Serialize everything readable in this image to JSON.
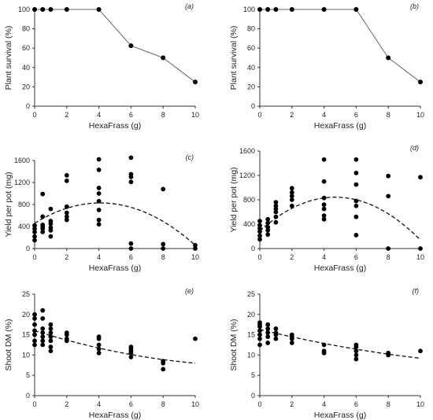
{
  "chart_data": [
    {
      "id": "a",
      "type": "line",
      "panel_label": "(a)",
      "xlabel": "HexaFrass (g)",
      "ylabel": "Plant survival (%)",
      "xlim": [
        0,
        10
      ],
      "ylim": [
        0,
        100
      ],
      "xticks": [
        0,
        2,
        4,
        6,
        8,
        10
      ],
      "yticks": [
        0,
        20,
        40,
        60,
        80,
        100
      ],
      "line_points": [
        [
          0,
          100
        ],
        [
          0.5,
          100
        ],
        [
          1,
          100
        ],
        [
          2,
          100
        ],
        [
          4,
          100
        ],
        [
          6,
          62.5
        ],
        [
          8,
          50
        ],
        [
          10,
          25
        ]
      ],
      "scatter_points": []
    },
    {
      "id": "b",
      "type": "line",
      "panel_label": "(b)",
      "xlabel": "HexaFrass (g)",
      "ylabel": "Plant survival (%)",
      "xlim": [
        0,
        10
      ],
      "ylim": [
        0,
        100
      ],
      "xticks": [
        0,
        2,
        4,
        6,
        8,
        10
      ],
      "yticks": [
        0,
        20,
        40,
        60,
        80,
        100
      ],
      "line_points": [
        [
          0,
          100
        ],
        [
          0.5,
          100
        ],
        [
          1,
          100
        ],
        [
          2,
          100
        ],
        [
          4,
          100
        ],
        [
          6,
          100
        ],
        [
          8,
          50
        ],
        [
          10,
          25
        ]
      ],
      "scatter_points": []
    },
    {
      "id": "c",
      "type": "scatter",
      "panel_label": "(c)",
      "xlabel": "HexaFrass (g)",
      "ylabel": "Yield per pot (mg)",
      "xlim": [
        0,
        10
      ],
      "ylim": [
        0,
        1600
      ],
      "xticks": [
        0,
        2,
        4,
        6,
        8,
        10
      ],
      "yticks": [
        0,
        400,
        800,
        1200,
        1600
      ],
      "scatter_points": [
        [
          0,
          150
        ],
        [
          0,
          220
        ],
        [
          0,
          300
        ],
        [
          0,
          360
        ],
        [
          0,
          420
        ],
        [
          0.5,
          300
        ],
        [
          0.5,
          360
        ],
        [
          0.5,
          400
        ],
        [
          0.5,
          430
        ],
        [
          0.5,
          580
        ],
        [
          0.5,
          990
        ],
        [
          1,
          220
        ],
        [
          1,
          330
        ],
        [
          1,
          380
        ],
        [
          1,
          450
        ],
        [
          1,
          500
        ],
        [
          1,
          720
        ],
        [
          2,
          520
        ],
        [
          2,
          580
        ],
        [
          2,
          650
        ],
        [
          2,
          760
        ],
        [
          2,
          1230
        ],
        [
          2,
          1330
        ],
        [
          4,
          440
        ],
        [
          4,
          520
        ],
        [
          4,
          700
        ],
        [
          4,
          860
        ],
        [
          4,
          1000
        ],
        [
          4,
          1100
        ],
        [
          4,
          1430
        ],
        [
          4,
          1620
        ],
        [
          6,
          0
        ],
        [
          6,
          90
        ],
        [
          6,
          1210
        ],
        [
          6,
          1300
        ],
        [
          6,
          1350
        ],
        [
          6,
          1650
        ],
        [
          8,
          0
        ],
        [
          8,
          80
        ],
        [
          8,
          1080
        ],
        [
          10,
          0
        ],
        [
          10,
          60
        ]
      ],
      "trend": {
        "style": "dashed",
        "quadratic": [
          460,
          180,
          -22
        ],
        "x_range": [
          0,
          9.9
        ]
      }
    },
    {
      "id": "d",
      "type": "scatter",
      "panel_label": "(d)",
      "xlabel": "HexaFrass (g)",
      "ylabel": "Yield per pot (mg)",
      "xlim": [
        0,
        10
      ],
      "ylim": [
        0,
        1600
      ],
      "xticks": [
        0,
        2,
        4,
        6,
        8,
        10
      ],
      "yticks": [
        0,
        400,
        800,
        1200,
        1600
      ],
      "scatter_points": [
        [
          0,
          150
        ],
        [
          0,
          210
        ],
        [
          0,
          280
        ],
        [
          0,
          330
        ],
        [
          0,
          380
        ],
        [
          0,
          450
        ],
        [
          0.5,
          230
        ],
        [
          0.5,
          300
        ],
        [
          0.5,
          350
        ],
        [
          0.5,
          420
        ],
        [
          0.5,
          480
        ],
        [
          1,
          430
        ],
        [
          1,
          520
        ],
        [
          1,
          600
        ],
        [
          1,
          650
        ],
        [
          1,
          700
        ],
        [
          1,
          760
        ],
        [
          2,
          700
        ],
        [
          2,
          800
        ],
        [
          2,
          860
        ],
        [
          2,
          920
        ],
        [
          2,
          990
        ],
        [
          4,
          480
        ],
        [
          4,
          540
        ],
        [
          4,
          650
        ],
        [
          4,
          720
        ],
        [
          4,
          830
        ],
        [
          4,
          1100
        ],
        [
          4,
          1460
        ],
        [
          6,
          220
        ],
        [
          6,
          520
        ],
        [
          6,
          700
        ],
        [
          6,
          780
        ],
        [
          6,
          1050
        ],
        [
          6,
          1240
        ],
        [
          6,
          1460
        ],
        [
          8,
          0
        ],
        [
          8,
          860
        ],
        [
          8,
          1190
        ],
        [
          10,
          0
        ],
        [
          10,
          1170
        ]
      ],
      "trend": {
        "style": "dashed",
        "quadratic": [
          290,
          235,
          -25
        ],
        "x_range": [
          0,
          10
        ]
      }
    },
    {
      "id": "e",
      "type": "scatter",
      "panel_label": "(e)",
      "xlabel": "HexaFrass (g)",
      "ylabel": "Shoot DM (%)",
      "xlim": [
        0,
        10
      ],
      "ylim": [
        0,
        25
      ],
      "xticks": [
        0,
        2,
        4,
        6,
        8,
        10
      ],
      "yticks": [
        0,
        5,
        10,
        15,
        20,
        25
      ],
      "scatter_points": [
        [
          0,
          12.5
        ],
        [
          0,
          13.5
        ],
        [
          0,
          15
        ],
        [
          0,
          16
        ],
        [
          0,
          17.5
        ],
        [
          0,
          19
        ],
        [
          0,
          20
        ],
        [
          0.5,
          12.5
        ],
        [
          0.5,
          13.5
        ],
        [
          0.5,
          14.5
        ],
        [
          0.5,
          15.5
        ],
        [
          0.5,
          16.5
        ],
        [
          0.5,
          19
        ],
        [
          0.5,
          21
        ],
        [
          1,
          11
        ],
        [
          1,
          12
        ],
        [
          1,
          13.5
        ],
        [
          1,
          14.5
        ],
        [
          1,
          15.5
        ],
        [
          1,
          16.5
        ],
        [
          1,
          17.5
        ],
        [
          2,
          13.5
        ],
        [
          2,
          14
        ],
        [
          2,
          15
        ],
        [
          2,
          15.5
        ],
        [
          4,
          10.5
        ],
        [
          4,
          11.5
        ],
        [
          4,
          12.5
        ],
        [
          4,
          14
        ],
        [
          4,
          14.5
        ],
        [
          6,
          9.5
        ],
        [
          6,
          10.5
        ],
        [
          6,
          11
        ],
        [
          6,
          11.5
        ],
        [
          6,
          12
        ],
        [
          8,
          6.5
        ],
        [
          8,
          8
        ],
        [
          8,
          8.5
        ],
        [
          10,
          14
        ]
      ],
      "trend": {
        "style": "dashed",
        "quadratic": [
          16,
          -1.25,
          0.045
        ],
        "x_range": [
          0,
          10
        ]
      }
    },
    {
      "id": "f",
      "type": "scatter",
      "panel_label": "(f)",
      "xlabel": "HexaFrass (g)",
      "ylabel": "Shoot DM (%)",
      "xlim": [
        0,
        10
      ],
      "ylim": [
        0,
        25
      ],
      "xticks": [
        0,
        2,
        4,
        6,
        8,
        10
      ],
      "yticks": [
        0,
        5,
        10,
        15,
        20,
        25
      ],
      "scatter_points": [
        [
          0,
          12.5
        ],
        [
          0,
          14
        ],
        [
          0,
          15
        ],
        [
          0,
          16
        ],
        [
          0,
          17
        ],
        [
          0,
          17.5
        ],
        [
          0,
          18
        ],
        [
          0.5,
          13
        ],
        [
          0.5,
          14.5
        ],
        [
          0.5,
          15.5
        ],
        [
          0.5,
          16.5
        ],
        [
          0.5,
          17.5
        ],
        [
          1,
          14
        ],
        [
          1,
          15
        ],
        [
          1,
          15.5
        ],
        [
          1,
          16.5
        ],
        [
          2,
          13
        ],
        [
          2,
          14
        ],
        [
          2,
          14.5
        ],
        [
          2,
          15
        ],
        [
          4,
          10.5
        ],
        [
          4,
          11
        ],
        [
          4,
          12.5
        ],
        [
          6,
          9
        ],
        [
          6,
          10
        ],
        [
          6,
          11
        ],
        [
          6,
          12
        ],
        [
          6,
          12.5
        ],
        [
          8,
          10
        ],
        [
          8,
          10.5
        ],
        [
          10,
          11
        ]
      ],
      "trend": {
        "style": "dashed",
        "quadratic": [
          16.3,
          -0.96,
          0.025
        ],
        "x_range": [
          0,
          10
        ]
      }
    }
  ]
}
